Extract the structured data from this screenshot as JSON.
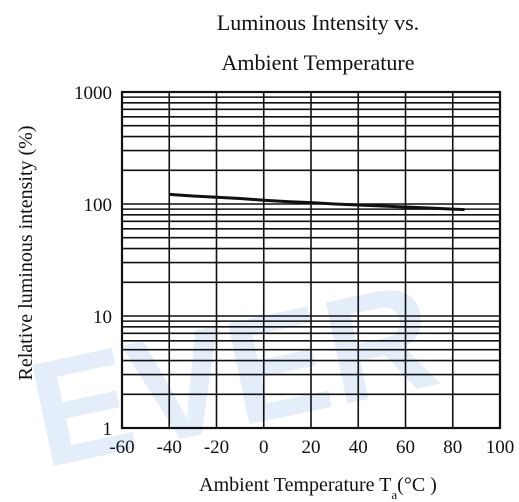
{
  "chart_data": {
    "type": "line",
    "title_lines": [
      "Luminous Intensity vs.",
      "Ambient Temperature"
    ],
    "ylabel": "Relative luminous intensity (%)",
    "xlabel_main": "Ambient Temperature T",
    "xlabel_sub": "a",
    "xlabel_unit": "(°C )",
    "xlim": [
      -60,
      100
    ],
    "ylim": [
      1,
      1000
    ],
    "yscale": "log",
    "grid": true,
    "x_ticks": [
      "-60",
      "-40",
      "-20",
      "0",
      "20",
      "40",
      "60",
      "80",
      "100"
    ],
    "y_ticks": [
      "1",
      "10",
      "100",
      "1000"
    ],
    "series": [
      {
        "x": [
          -40,
          -30,
          -20,
          -10,
          0,
          10,
          20,
          30,
          40,
          50,
          60,
          70,
          80,
          85
        ],
        "y": [
          122,
          118,
          115,
          112,
          108,
          105,
          103,
          100,
          98,
          96,
          94,
          92,
          90,
          89
        ]
      }
    ],
    "watermark": "EVER"
  }
}
